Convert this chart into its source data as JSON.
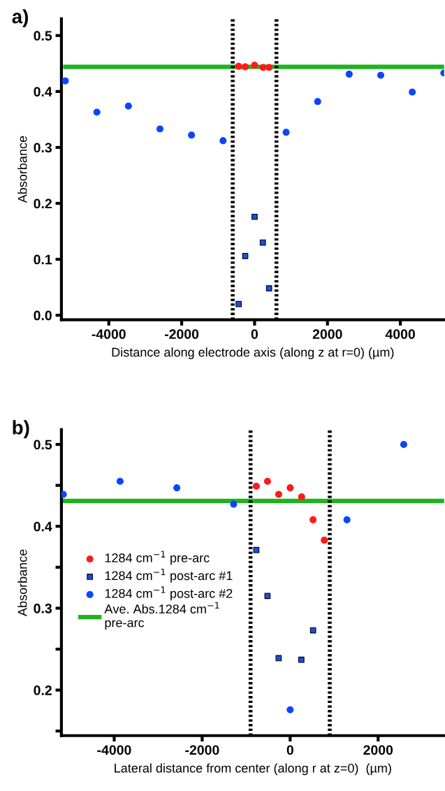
{
  "chart_data": [
    {
      "type": "scatter",
      "title": "a)",
      "xlabel": "Distance along electrode axis (along z at r=0) (µm)",
      "ylabel": "Absorbance",
      "xlim": [
        -5300,
        5200
      ],
      "xticks": [
        -4000,
        -2000,
        0,
        2000,
        4000
      ],
      "ylim": [
        -0.008,
        0.53
      ],
      "yticks": [
        {
          "value": 0,
          "label": "0.0"
        },
        0.1,
        0.2,
        0.3,
        0.4,
        0.5
      ],
      "grid": false,
      "legend": false,
      "series": [
        {
          "color": "#ff1a1a",
          "marker": "circle",
          "x": [
            -437,
            -257,
            0,
            234,
            398
          ],
          "values": [
            0.445,
            0.444,
            0.447,
            0.443,
            0.443
          ]
        },
        {
          "color": "#1a4fe0",
          "marker": "square",
          "x": [
            -437,
            -257,
            0,
            226,
            398
          ],
          "values": [
            0.02,
            0.106,
            0.176,
            0.13,
            0.048
          ]
        },
        {
          "color": "#0a46ff",
          "marker": "circle",
          "x": [
            -5193,
            -4327,
            -3462,
            -2596,
            -1731,
            -865,
            865,
            1731,
            2596,
            3462,
            4327,
            5193
          ],
          "values": [
            0.419,
            0.363,
            0.374,
            0.333,
            0.322,
            0.312,
            0.327,
            0.382,
            0.431,
            0.429,
            0.399,
            0.433
          ]
        },
        {
          "type": "line",
          "color": "#1db31d",
          "x": [
            -5193,
            5200
          ],
          "values": [
            0.444,
            0.444
          ]
        }
      ],
      "ref_lines": [
        {
          "axis": "x",
          "value": -600,
          "line_style": "dotted",
          "color": "#000000"
        },
        {
          "axis": "x",
          "value": 600,
          "line_style": "dotted",
          "color": "#000000"
        }
      ]
    },
    {
      "type": "scatter",
      "title": "b)",
      "xlabel": "Lateral distance from center (along r at z=0)  (µm)",
      "ylabel": "Absorbance",
      "xlim": [
        -5200,
        3500
      ],
      "xticks": [
        -4000,
        -2000,
        0,
        2000
      ],
      "ylim": [
        0.1444,
        0.518
      ],
      "yticks": [
        {
          "value": 0.15,
          "label": null
        },
        0.2,
        {
          "value": 0.25,
          "label": null
        },
        0.3,
        {
          "value": 0.35,
          "label": null
        },
        0.4,
        {
          "value": 0.45,
          "label": null
        },
        0.5
      ],
      "grid": false,
      "legend": "left",
      "series": [
        {
          "name": "1284 cm$^{−1}$ pre-arc",
          "color": "#ff1a1a",
          "marker": "circle",
          "x": [
            -769,
            -515,
            -261,
            0,
            261,
            521,
            776
          ],
          "values": [
            0.449,
            0.455,
            0.439,
            0.447,
            0.436,
            0.408,
            0.383
          ]
        },
        {
          "name": "1284 cm$^{−1}$ post-arc #1",
          "color": "#1a4fe0",
          "marker": "square",
          "x": [
            -769,
            -515,
            -261,
            254,
            521
          ],
          "values": [
            0.371,
            0.315,
            0.239,
            0.237,
            0.273
          ]
        },
        {
          "name": "1284 cm$^{−1}$ post-arc #2",
          "color": "#0a46ff",
          "marker": "circle",
          "x": [
            -5157,
            -3866,
            -2576,
            -1285,
            0,
            1291,
            2582
          ],
          "values": [
            0.439,
            0.455,
            0.447,
            0.427,
            0.176,
            0.408,
            0.5
          ]
        },
        {
          "name": "Ave. Abs.1284 cm$^{−1}$\npre-arc",
          "type": "line",
          "color": "#1db31d",
          "x": [
            -5157,
            3500
          ],
          "values": [
            0.431,
            0.431
          ]
        }
      ],
      "ref_lines": [
        {
          "axis": "x",
          "value": -900,
          "line_style": "dotted",
          "color": "#000000"
        },
        {
          "axis": "x",
          "value": 900,
          "line_style": "dotted",
          "color": "#000000"
        }
      ]
    }
  ]
}
